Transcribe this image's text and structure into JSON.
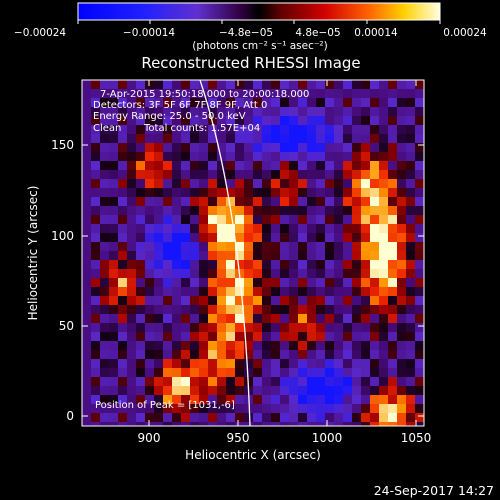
{
  "colorbar": {
    "ticks": [
      "−0.00024",
      "−0.00014",
      "−4.8e−05",
      "4.8e−05",
      "0.00014",
      "0.00024"
    ],
    "unit_label": "(photons cm⁻² s⁻¹ asec⁻²)",
    "range": [
      -0.00024,
      0.00024
    ]
  },
  "plot": {
    "title": "Reconstructed RHESSI Image",
    "xlabel": "Heliocentric X (arcsec)",
    "ylabel": "Heliocentric Y (arcsec)",
    "xlim": [
      862,
      1052
    ],
    "ylim": [
      -4,
      188
    ],
    "x_ticks": [
      "900",
      "950",
      "1000",
      "1050"
    ],
    "y_ticks": [
      "0",
      "50",
      "100",
      "150"
    ]
  },
  "annotations": {
    "time_range": "7-Apr-2015 19:50:18.000 to 20:00:18.000",
    "detectors": "Detectors: 3F 5F 6F 7F 8F 9F, Att 0",
    "energy": "Energy Range: 25.0 - 50.0 keV",
    "clean_label": "Clean",
    "total_counts": "Total counts: 1.57E+04",
    "peak_position": "Position of Peak = [1031,-6]"
  },
  "footer": {
    "timestamp": "24-Sep-2017 14:27"
  },
  "colors": {
    "background": "#000000",
    "limb_line": "#ffffff"
  }
}
